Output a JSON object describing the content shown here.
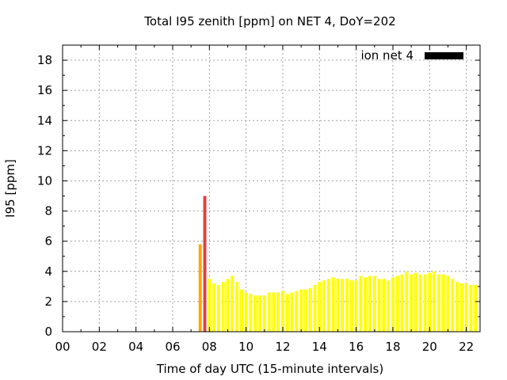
{
  "chart_data": {
    "type": "bar",
    "title": "Total I95 zenith [ppm] on NET 4, DoY=202",
    "xlabel": "Time of day UTC (15-minute intervals)",
    "ylabel": "I95 [ppm]",
    "xlim": [
      0,
      22.75
    ],
    "ylim": [
      0,
      19
    ],
    "x_ticks": [
      0,
      2,
      4,
      6,
      8,
      10,
      12,
      14,
      16,
      18,
      20,
      22
    ],
    "x_tick_labels": [
      "00",
      "02",
      "04",
      "06",
      "08",
      "10",
      "12",
      "14",
      "16",
      "18",
      "20",
      "22"
    ],
    "y_ticks": [
      0,
      2,
      4,
      6,
      8,
      10,
      12,
      14,
      16,
      18
    ],
    "y_tick_labels": [
      "0",
      "2",
      "4",
      "6",
      "8",
      "10",
      "12",
      "14",
      "16",
      "18"
    ],
    "grid": true,
    "legend": {
      "label": "ion net 4",
      "color": "#000000",
      "placement": "top-right"
    },
    "colors": {
      "low": "#ffff00",
      "medium": "#ffa500",
      "high": "#e04040"
    },
    "bar_width_hours": 0.17,
    "x": [
      7.5,
      7.75,
      8.0,
      8.25,
      8.5,
      8.75,
      9.0,
      9.25,
      9.5,
      9.75,
      10.0,
      10.25,
      10.5,
      10.75,
      11.0,
      11.25,
      11.5,
      11.75,
      12.0,
      12.25,
      12.5,
      12.75,
      13.0,
      13.25,
      13.5,
      13.75,
      14.0,
      14.25,
      14.5,
      14.75,
      15.0,
      15.25,
      15.5,
      15.75,
      16.0,
      16.25,
      16.5,
      16.75,
      17.0,
      17.25,
      17.5,
      17.75,
      18.0,
      18.25,
      18.5,
      18.75,
      19.0,
      19.25,
      19.5,
      19.75,
      20.0,
      20.25,
      20.5,
      20.75,
      21.0,
      21.25,
      21.5,
      21.75,
      22.0,
      22.25,
      22.5
    ],
    "values": [
      5.8,
      9.0,
      3.5,
      3.2,
      3.1,
      3.3,
      3.5,
      3.7,
      3.3,
      2.8,
      2.6,
      2.5,
      2.4,
      2.4,
      2.4,
      2.6,
      2.6,
      2.6,
      2.7,
      2.5,
      2.6,
      2.7,
      2.8,
      2.8,
      2.9,
      3.1,
      3.3,
      3.4,
      3.5,
      3.6,
      3.5,
      3.5,
      3.5,
      3.4,
      3.4,
      3.7,
      3.6,
      3.7,
      3.7,
      3.5,
      3.5,
      3.4,
      3.6,
      3.7,
      3.8,
      4.0,
      3.8,
      3.9,
      3.8,
      3.8,
      3.9,
      4.0,
      3.8,
      3.8,
      3.7,
      3.5,
      3.3,
      3.2,
      3.2,
      3.1,
      3.1
    ],
    "level": [
      "medium",
      "high",
      "low",
      "low",
      "low",
      "low",
      "low",
      "low",
      "low",
      "low",
      "low",
      "low",
      "low",
      "low",
      "low",
      "low",
      "low",
      "low",
      "low",
      "low",
      "low",
      "low",
      "low",
      "low",
      "low",
      "low",
      "low",
      "low",
      "low",
      "low",
      "low",
      "low",
      "low",
      "low",
      "low",
      "low",
      "low",
      "low",
      "low",
      "low",
      "low",
      "low",
      "low",
      "low",
      "low",
      "low",
      "low",
      "low",
      "low",
      "low",
      "low",
      "low",
      "low",
      "low",
      "low",
      "low",
      "low",
      "low",
      "low",
      "low",
      "low"
    ]
  }
}
